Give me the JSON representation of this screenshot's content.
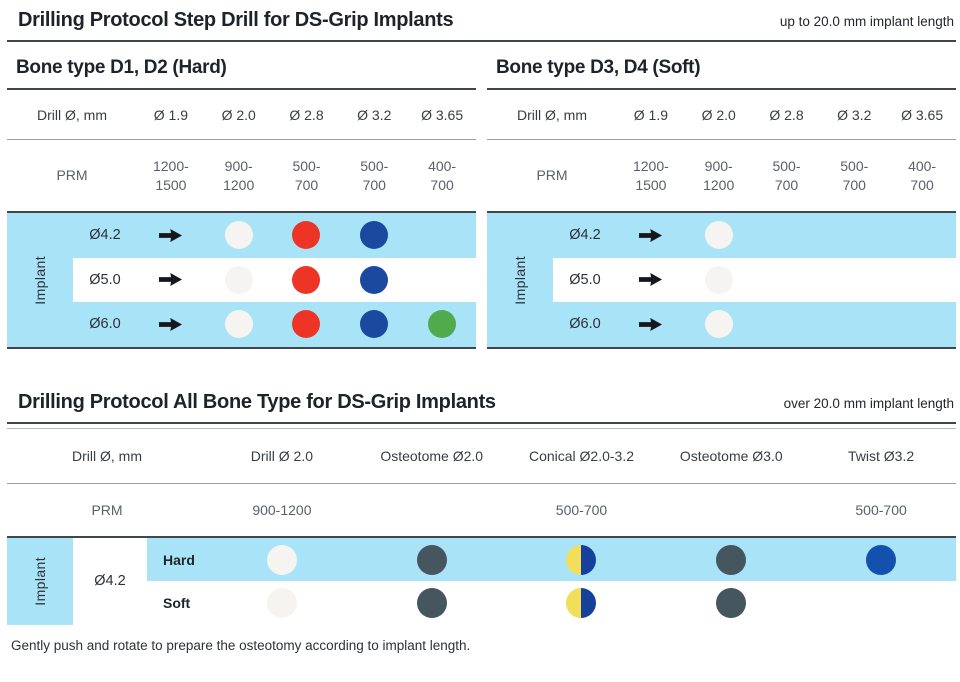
{
  "header": {
    "title": "Drilling Protocol Step Drill for DS-Grip Implants",
    "note": "up to 20.0 mm implant length"
  },
  "step_section": {
    "tables": [
      {
        "subtitle": "Bone type D1, D2 (Hard)",
        "drill_label": "Drill Ø, mm",
        "drill_sizes": [
          "Ø 1.9",
          "Ø 2.0",
          "Ø 2.8",
          "Ø 3.2",
          "Ø 3.65"
        ],
        "prm_label": "PRM",
        "prm_values": [
          "1200-\n1500",
          "900-\n1200",
          "500-\n700",
          "500-\n700",
          "400-\n700"
        ],
        "implant_label": "Implant",
        "rows": [
          {
            "implant": "Ø4.2",
            "cells": [
              "arrow",
              "dot-white",
              "dot-red",
              "dot-blue",
              ""
            ]
          },
          {
            "implant": "Ø5.0",
            "cells": [
              "arrow",
              "dot-white",
              "dot-red",
              "dot-blue",
              ""
            ]
          },
          {
            "implant": "Ø6.0",
            "cells": [
              "arrow",
              "dot-white",
              "dot-red",
              "dot-blue",
              "dot-green"
            ]
          }
        ]
      },
      {
        "subtitle": "Bone type D3, D4 (Soft)",
        "drill_label": "Drill Ø, mm",
        "drill_sizes": [
          "Ø 1.9",
          "Ø 2.0",
          "Ø 2.8",
          "Ø 3.2",
          "Ø 3.65"
        ],
        "prm_label": "PRM",
        "prm_values": [
          "1200-\n1500",
          "900-\n1200",
          "500-\n700",
          "500-\n700",
          "400-\n700"
        ],
        "implant_label": "Implant",
        "rows": [
          {
            "implant": "Ø4.2",
            "cells": [
              "arrow",
              "dot-white",
              "",
              "",
              ""
            ]
          },
          {
            "implant": "Ø5.0",
            "cells": [
              "arrow",
              "dot-white",
              "",
              "",
              ""
            ]
          },
          {
            "implant": "Ø6.0",
            "cells": [
              "arrow",
              "dot-white",
              "",
              "",
              ""
            ]
          }
        ]
      }
    ]
  },
  "all_bone_section": {
    "title": "Drilling Protocol All Bone Type for DS-Grip Implants",
    "note": "over 20.0 mm implant length",
    "drill_label": "Drill Ø, mm",
    "tools": [
      "Drill Ø 2.0",
      "Osteotome Ø2.0",
      "Conical Ø2.0-3.2",
      "Osteotome Ø3.0",
      "Twist Ø3.2"
    ],
    "prm_label": "PRM",
    "prm_values": [
      "900-1200",
      "",
      "500-700",
      "",
      "500-700"
    ],
    "implant_label": "Implant",
    "implant_size": "Ø4.2",
    "rows": [
      {
        "bone": "Hard",
        "cells": [
          "dot-white",
          "dot-gray",
          "dot-half",
          "dot-gray",
          "dot-twist"
        ]
      },
      {
        "bone": "Soft",
        "cells": [
          "dot-white",
          "dot-gray",
          "dot-half",
          "dot-gray",
          ""
        ]
      }
    ]
  },
  "footnote": "Gently push and rotate to prepare the osteotomy according to implant length.",
  "colors": {
    "light_blue": "#a9e3f7",
    "dot_white": "#f6f4f1",
    "dot_red": "#ee3424",
    "dot_blue": "#1b499f",
    "dot_green": "#51ab4d",
    "dot_gray": "#46565f",
    "dot_twist_blue": "#1451ae",
    "dot_half_yellow": "#f1df59",
    "dot_half_blue": "#15409c",
    "rule_dark": "#41454c",
    "rule_gray": "#989ea4"
  }
}
